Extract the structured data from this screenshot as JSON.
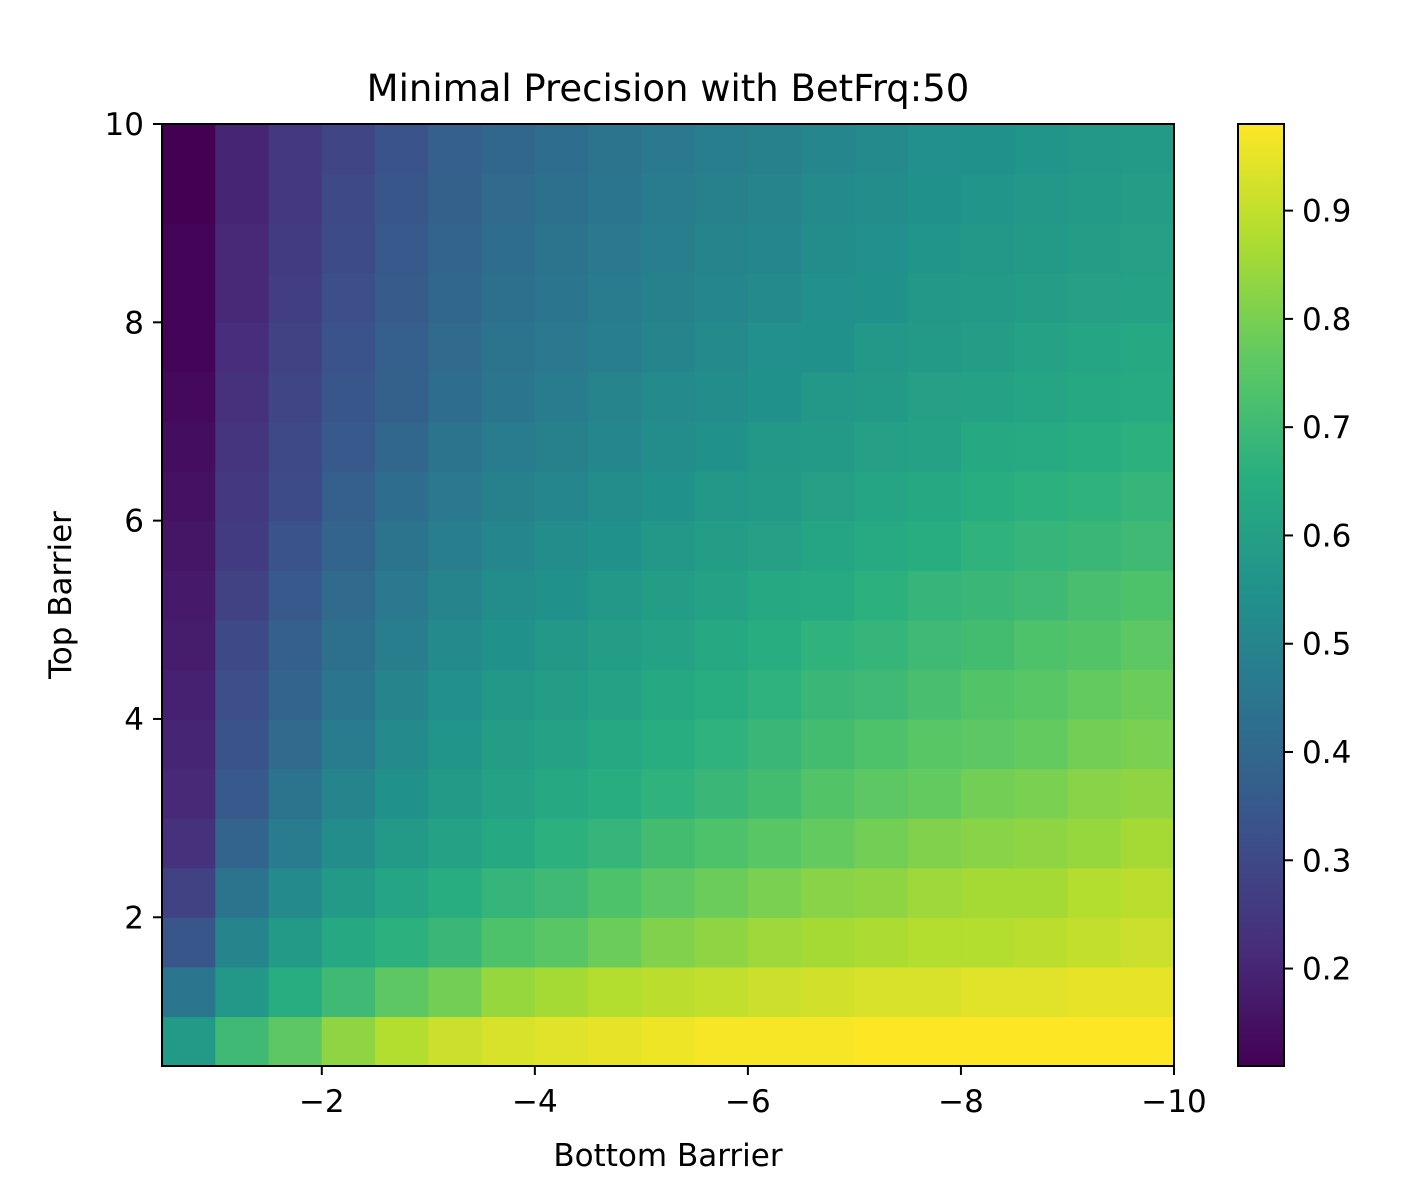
{
  "chart_data": {
    "type": "heatmap",
    "title": "Minimal Precision with BetFrq:50",
    "xlabel": "Bottom Barrier",
    "ylabel": "Top Barrier",
    "xlim": [
      -0.5,
      -10
    ],
    "ylim": [
      0.5,
      10
    ],
    "x_ticks": [
      -2,
      -4,
      -6,
      -8,
      -10
    ],
    "x_tick_labels": [
      "−2",
      "−4",
      "−6",
      "−8",
      "−10"
    ],
    "y_ticks": [
      2,
      4,
      6,
      8,
      10
    ],
    "y_tick_labels": [
      "2",
      "4",
      "6",
      "8",
      "10"
    ],
    "colormap": "viridis",
    "colorbar": {
      "min": 0.11,
      "max": 0.98,
      "ticks": [
        0.2,
        0.3,
        0.4,
        0.5,
        0.6,
        0.7,
        0.8,
        0.9
      ],
      "tick_labels": [
        "0.2",
        "0.3",
        "0.4",
        "0.5",
        "0.6",
        "0.7",
        "0.8",
        "0.9"
      ]
    },
    "x_centers": [
      -0.75,
      -1.25,
      -1.75,
      -2.25,
      -2.75,
      -3.25,
      -3.75,
      -4.25,
      -4.75,
      -5.25,
      -5.75,
      -6.25,
      -6.75,
      -7.25,
      -7.75,
      -8.25,
      -8.75,
      -9.25,
      -9.75
    ],
    "y_centers": [
      0.75,
      1.25,
      1.75,
      2.25,
      2.75,
      3.25,
      3.75,
      4.25,
      4.75,
      5.25,
      5.75,
      6.25,
      6.75,
      7.25,
      7.75,
      8.25,
      8.75,
      9.25,
      9.75
    ],
    "grid": false,
    "values": [
      [
        0.58,
        0.7,
        0.76,
        0.83,
        0.88,
        0.91,
        0.93,
        0.94,
        0.95,
        0.96,
        0.97,
        0.97,
        0.97,
        0.98,
        0.98,
        0.98,
        0.98,
        0.98,
        0.98
      ],
      [
        0.45,
        0.57,
        0.65,
        0.7,
        0.76,
        0.79,
        0.84,
        0.86,
        0.88,
        0.89,
        0.9,
        0.91,
        0.92,
        0.93,
        0.93,
        0.94,
        0.94,
        0.95,
        0.95
      ],
      [
        0.34,
        0.5,
        0.58,
        0.63,
        0.66,
        0.69,
        0.73,
        0.75,
        0.78,
        0.81,
        0.83,
        0.85,
        0.86,
        0.87,
        0.88,
        0.88,
        0.89,
        0.9,
        0.91
      ],
      [
        0.28,
        0.44,
        0.52,
        0.58,
        0.62,
        0.65,
        0.68,
        0.7,
        0.73,
        0.76,
        0.78,
        0.8,
        0.82,
        0.83,
        0.85,
        0.86,
        0.86,
        0.88,
        0.89
      ],
      [
        0.23,
        0.39,
        0.47,
        0.53,
        0.58,
        0.61,
        0.63,
        0.66,
        0.68,
        0.71,
        0.73,
        0.75,
        0.77,
        0.79,
        0.81,
        0.82,
        0.83,
        0.84,
        0.86
      ],
      [
        0.21,
        0.35,
        0.44,
        0.5,
        0.55,
        0.58,
        0.61,
        0.63,
        0.65,
        0.67,
        0.69,
        0.71,
        0.74,
        0.76,
        0.77,
        0.79,
        0.8,
        0.82,
        0.83
      ],
      [
        0.2,
        0.33,
        0.41,
        0.47,
        0.52,
        0.56,
        0.59,
        0.61,
        0.63,
        0.65,
        0.67,
        0.69,
        0.71,
        0.73,
        0.75,
        0.76,
        0.77,
        0.79,
        0.8
      ],
      [
        0.19,
        0.32,
        0.39,
        0.45,
        0.5,
        0.54,
        0.57,
        0.59,
        0.61,
        0.63,
        0.65,
        0.67,
        0.69,
        0.7,
        0.72,
        0.74,
        0.75,
        0.77,
        0.78
      ],
      [
        0.18,
        0.3,
        0.37,
        0.43,
        0.48,
        0.52,
        0.55,
        0.57,
        0.59,
        0.61,
        0.63,
        0.65,
        0.67,
        0.68,
        0.7,
        0.71,
        0.73,
        0.74,
        0.76
      ],
      [
        0.17,
        0.28,
        0.35,
        0.41,
        0.46,
        0.5,
        0.53,
        0.55,
        0.57,
        0.59,
        0.61,
        0.63,
        0.64,
        0.66,
        0.68,
        0.69,
        0.7,
        0.72,
        0.73
      ],
      [
        0.16,
        0.26,
        0.33,
        0.39,
        0.44,
        0.48,
        0.51,
        0.53,
        0.55,
        0.57,
        0.59,
        0.6,
        0.62,
        0.64,
        0.65,
        0.67,
        0.68,
        0.69,
        0.7
      ],
      [
        0.15,
        0.25,
        0.31,
        0.37,
        0.42,
        0.46,
        0.49,
        0.51,
        0.53,
        0.55,
        0.57,
        0.58,
        0.6,
        0.62,
        0.63,
        0.65,
        0.66,
        0.67,
        0.68
      ],
      [
        0.14,
        0.24,
        0.3,
        0.35,
        0.4,
        0.44,
        0.47,
        0.49,
        0.51,
        0.53,
        0.55,
        0.57,
        0.58,
        0.6,
        0.61,
        0.63,
        0.64,
        0.65,
        0.66
      ],
      [
        0.13,
        0.23,
        0.29,
        0.34,
        0.38,
        0.42,
        0.45,
        0.47,
        0.5,
        0.52,
        0.53,
        0.55,
        0.57,
        0.58,
        0.6,
        0.61,
        0.62,
        0.63,
        0.64
      ],
      [
        0.12,
        0.22,
        0.28,
        0.33,
        0.37,
        0.41,
        0.44,
        0.46,
        0.48,
        0.5,
        0.52,
        0.54,
        0.55,
        0.57,
        0.58,
        0.59,
        0.61,
        0.62,
        0.63
      ],
      [
        0.12,
        0.21,
        0.27,
        0.32,
        0.36,
        0.4,
        0.43,
        0.45,
        0.47,
        0.49,
        0.51,
        0.52,
        0.54,
        0.55,
        0.57,
        0.58,
        0.59,
        0.6,
        0.61
      ],
      [
        0.12,
        0.21,
        0.26,
        0.31,
        0.35,
        0.39,
        0.42,
        0.44,
        0.46,
        0.48,
        0.5,
        0.51,
        0.53,
        0.54,
        0.56,
        0.57,
        0.58,
        0.59,
        0.6
      ],
      [
        0.11,
        0.2,
        0.25,
        0.3,
        0.34,
        0.38,
        0.41,
        0.43,
        0.45,
        0.47,
        0.49,
        0.5,
        0.52,
        0.53,
        0.55,
        0.56,
        0.57,
        0.58,
        0.59
      ],
      [
        0.11,
        0.2,
        0.25,
        0.29,
        0.33,
        0.37,
        0.4,
        0.42,
        0.44,
        0.46,
        0.48,
        0.49,
        0.51,
        0.52,
        0.54,
        0.55,
        0.56,
        0.57,
        0.58
      ]
    ]
  }
}
